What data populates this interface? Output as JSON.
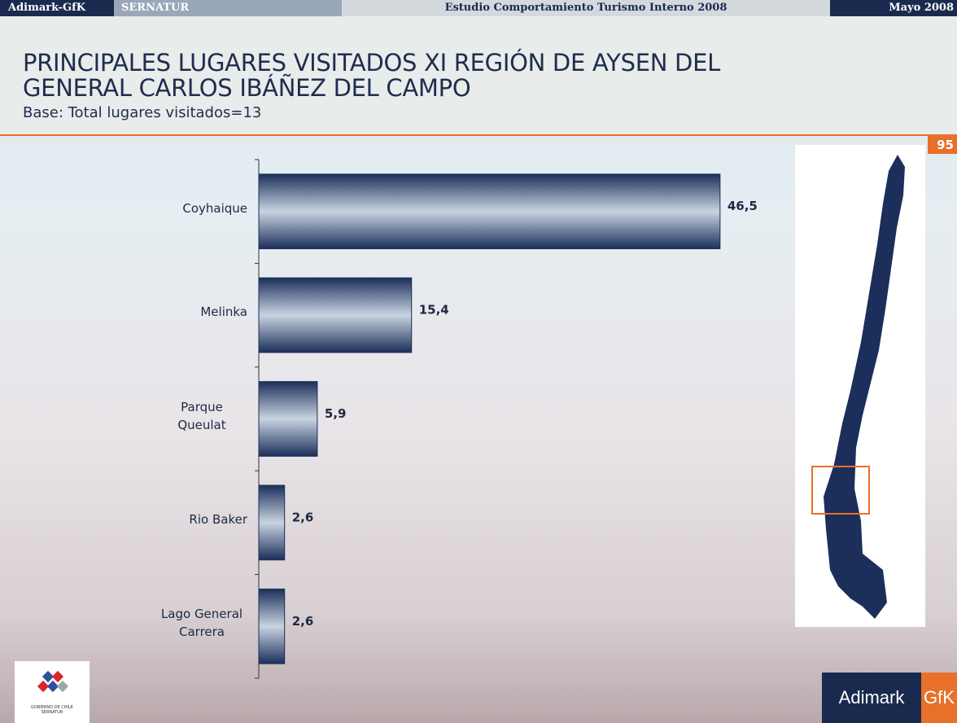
{
  "slide": {
    "header": {
      "brand": "Adimark-GfK",
      "client": "SERNATUR",
      "study": "Estudio Comportamiento Turismo Interno 2008",
      "date": "Mayo 2008"
    },
    "title_lines": [
      "PRINCIPALES LUGARES VISITADOS XI REGIÓN DE AYSEN DEL",
      "GENERAL CARLOS IBÁÑEZ DEL CAMPO"
    ],
    "subtitle": "Base: Total lugares visitados=13",
    "page_number": 95,
    "logo": [
      "GOBIERNO DE CHILE",
      "SERNATUR"
    ],
    "footer": {
      "brand": "Adimark",
      "partner": "GfK"
    }
  },
  "chart_data": {
    "type": "bar",
    "orientation": "horizontal",
    "categories": [
      "Coyhaique",
      "Melinka",
      "Parque Queulat",
      "Rio Baker",
      "Lago General Carrera"
    ],
    "values": [
      46.5,
      15.4,
      5.9,
      2.6,
      2.6
    ],
    "value_labels": [
      "46,5",
      "15,4",
      "5,9",
      "2,6",
      "2,6"
    ],
    "color": "#1b2f5a"
  }
}
